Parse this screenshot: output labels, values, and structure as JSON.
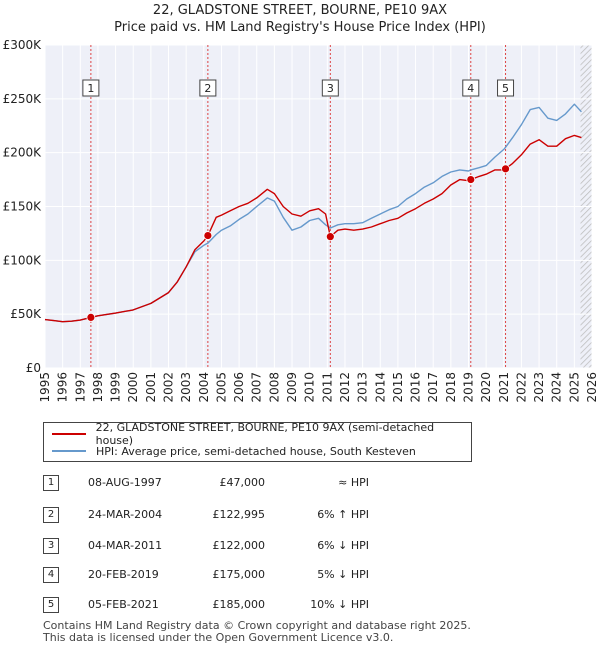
{
  "title_line1": "22, GLADSTONE STREET, BOURNE, PE10 9AX",
  "title_line2": "Price paid vs. HM Land Registry's House Price Index (HPI)",
  "chart_data": {
    "type": "line",
    "title": "22, GLADSTONE STREET, BOURNE, PE10 9AX — Price paid vs. HM Land Registry's House Price Index (HPI)",
    "xlim": [
      1995,
      2026
    ],
    "ylim": [
      0,
      300000
    ],
    "x_ticks": [
      1995,
      1996,
      1997,
      1998,
      1999,
      2000,
      2001,
      2002,
      2003,
      2004,
      2005,
      2006,
      2007,
      2008,
      2009,
      2010,
      2011,
      2012,
      2013,
      2014,
      2015,
      2016,
      2017,
      2018,
      2019,
      2020,
      2021,
      2022,
      2023,
      2024,
      2025,
      2026
    ],
    "y_ticks": [
      {
        "value": 0,
        "label": "£0"
      },
      {
        "value": 50000,
        "label": "£50K"
      },
      {
        "value": 100000,
        "label": "£100K"
      },
      {
        "value": 150000,
        "label": "£150K"
      },
      {
        "value": 200000,
        "label": "£200K"
      },
      {
        "value": 250000,
        "label": "£250K"
      },
      {
        "value": 300000,
        "label": "£300K"
      }
    ],
    "grid": true,
    "series": [
      {
        "name": "22, GLADSTONE STREET, BOURNE, PE10 9AX (semi-detached house)",
        "color": "#cc0000",
        "points": [
          [
            1995.0,
            45000
          ],
          [
            1995.5,
            44000
          ],
          [
            1996.0,
            43000
          ],
          [
            1996.5,
            43500
          ],
          [
            1997.0,
            44500
          ],
          [
            1997.6,
            47000
          ],
          [
            1998.0,
            48500
          ],
          [
            1999.0,
            51000
          ],
          [
            2000.0,
            54000
          ],
          [
            2001.0,
            60000
          ],
          [
            2002.0,
            70000
          ],
          [
            2002.5,
            80000
          ],
          [
            2003.0,
            94000
          ],
          [
            2003.5,
            110000
          ],
          [
            2004.0,
            118000
          ],
          [
            2004.23,
            122995
          ],
          [
            2004.7,
            140000
          ],
          [
            2005.0,
            142000
          ],
          [
            2005.5,
            146000
          ],
          [
            2006.0,
            150000
          ],
          [
            2006.5,
            153000
          ],
          [
            2007.0,
            158000
          ],
          [
            2007.6,
            166000
          ],
          [
            2008.0,
            162000
          ],
          [
            2008.5,
            150000
          ],
          [
            2009.0,
            143000
          ],
          [
            2009.5,
            141000
          ],
          [
            2010.0,
            146000
          ],
          [
            2010.5,
            148000
          ],
          [
            2010.9,
            143000
          ],
          [
            2011.17,
            122000
          ],
          [
            2011.6,
            128000
          ],
          [
            2012.0,
            129000
          ],
          [
            2012.5,
            128000
          ],
          [
            2013.0,
            129000
          ],
          [
            2013.5,
            131000
          ],
          [
            2014.0,
            134000
          ],
          [
            2014.5,
            137000
          ],
          [
            2015.0,
            139000
          ],
          [
            2015.5,
            144000
          ],
          [
            2016.0,
            148000
          ],
          [
            2016.5,
            153000
          ],
          [
            2017.0,
            157000
          ],
          [
            2017.5,
            162000
          ],
          [
            2018.0,
            170000
          ],
          [
            2018.5,
            175000
          ],
          [
            2019.0,
            174000
          ],
          [
            2019.13,
            175000
          ],
          [
            2019.6,
            178000
          ],
          [
            2020.0,
            180000
          ],
          [
            2020.5,
            184000
          ],
          [
            2021.0,
            184000
          ],
          [
            2021.1,
            185000
          ],
          [
            2021.5,
            190000
          ],
          [
            2022.0,
            198000
          ],
          [
            2022.5,
            208000
          ],
          [
            2023.0,
            212000
          ],
          [
            2023.5,
            206000
          ],
          [
            2024.0,
            206000
          ],
          [
            2024.5,
            213000
          ],
          [
            2025.0,
            216000
          ],
          [
            2025.4,
            214000
          ]
        ]
      },
      {
        "name": "HPI: Average price, semi-detached house, South Kesteven",
        "color": "#6699cc",
        "points": [
          [
            1995.0,
            45000
          ],
          [
            1995.5,
            44000
          ],
          [
            1996.0,
            43000
          ],
          [
            1996.5,
            43500
          ],
          [
            1997.0,
            44500
          ],
          [
            1997.6,
            47000
          ],
          [
            1998.0,
            48500
          ],
          [
            1999.0,
            51000
          ],
          [
            2000.0,
            54000
          ],
          [
            2001.0,
            60000
          ],
          [
            2002.0,
            70000
          ],
          [
            2002.5,
            80000
          ],
          [
            2003.0,
            94000
          ],
          [
            2003.5,
            108000
          ],
          [
            2004.0,
            114000
          ],
          [
            2004.23,
            116000
          ],
          [
            2004.7,
            124000
          ],
          [
            2005.0,
            128000
          ],
          [
            2005.5,
            132000
          ],
          [
            2006.0,
            138000
          ],
          [
            2006.5,
            143000
          ],
          [
            2007.0,
            150000
          ],
          [
            2007.6,
            158000
          ],
          [
            2008.0,
            155000
          ],
          [
            2008.5,
            140000
          ],
          [
            2009.0,
            128000
          ],
          [
            2009.5,
            131000
          ],
          [
            2010.0,
            137000
          ],
          [
            2010.5,
            139000
          ],
          [
            2010.9,
            133000
          ],
          [
            2011.17,
            130000
          ],
          [
            2011.6,
            133000
          ],
          [
            2012.0,
            134000
          ],
          [
            2012.5,
            134000
          ],
          [
            2013.0,
            135000
          ],
          [
            2013.5,
            139000
          ],
          [
            2014.0,
            143000
          ],
          [
            2014.5,
            147000
          ],
          [
            2015.0,
            150000
          ],
          [
            2015.5,
            157000
          ],
          [
            2016.0,
            162000
          ],
          [
            2016.5,
            168000
          ],
          [
            2017.0,
            172000
          ],
          [
            2017.5,
            178000
          ],
          [
            2018.0,
            182000
          ],
          [
            2018.5,
            184000
          ],
          [
            2019.0,
            183000
          ],
          [
            2019.13,
            184000
          ],
          [
            2019.6,
            186000
          ],
          [
            2020.0,
            188000
          ],
          [
            2020.5,
            196000
          ],
          [
            2021.0,
            203000
          ],
          [
            2021.1,
            205000
          ],
          [
            2021.5,
            214000
          ],
          [
            2022.0,
            226000
          ],
          [
            2022.5,
            240000
          ],
          [
            2023.0,
            242000
          ],
          [
            2023.5,
            232000
          ],
          [
            2024.0,
            230000
          ],
          [
            2024.5,
            236000
          ],
          [
            2025.0,
            245000
          ],
          [
            2025.4,
            238000
          ]
        ]
      }
    ],
    "sales": [
      {
        "label": "1",
        "x": 1997.6,
        "price": 47000
      },
      {
        "label": "2",
        "x": 2004.23,
        "price": 122995
      },
      {
        "label": "3",
        "x": 2011.17,
        "price": 122000
      },
      {
        "label": "4",
        "x": 2019.13,
        "price": 175000
      },
      {
        "label": "5",
        "x": 2021.1,
        "price": 185000
      }
    ],
    "forecast_start": 2025.35
  },
  "legend": {
    "property_label": "22, GLADSTONE STREET, BOURNE, PE10 9AX (semi-detached house)",
    "hpi_label": "HPI: Average price, semi-detached house, South Kesteven",
    "property_color": "#cc0000",
    "hpi_color": "#6699cc"
  },
  "table": [
    {
      "num": "1",
      "date": "08-AUG-1997",
      "price": "£47,000",
      "relation": "≈ HPI"
    },
    {
      "num": "2",
      "date": "24-MAR-2004",
      "price": "£122,995",
      "relation": "6% ↑ HPI"
    },
    {
      "num": "3",
      "date": "04-MAR-2011",
      "price": "£122,000",
      "relation": "6% ↓ HPI"
    },
    {
      "num": "4",
      "date": "20-FEB-2019",
      "price": "£175,000",
      "relation": "5% ↓ HPI"
    },
    {
      "num": "5",
      "date": "05-FEB-2021",
      "price": "£185,000",
      "relation": "10% ↓ HPI"
    }
  ],
  "footer": {
    "line1": "Contains HM Land Registry data © Crown copyright and database right 2025.",
    "line2": "This data is licensed under the Open Government Licence v3.0."
  }
}
